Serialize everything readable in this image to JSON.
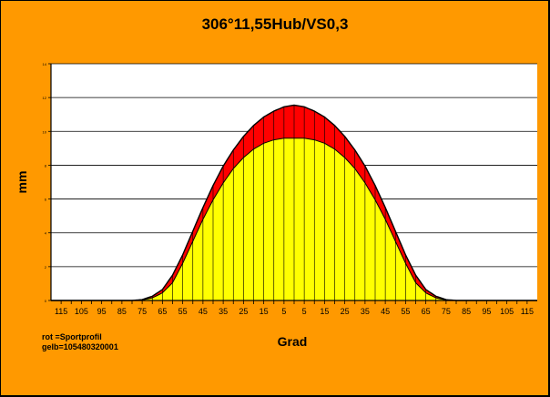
{
  "chart_data": {
    "type": "area",
    "title": "306°11,55Hub/VS0,3",
    "xlabel": "Grad",
    "ylabel": "mm",
    "x_tick_labels": [
      "115",
      "105",
      "95",
      "85",
      "75",
      "65",
      "55",
      "45",
      "35",
      "25",
      "15",
      "5",
      "5",
      "15",
      "25",
      "35",
      "45",
      "55",
      "65",
      "75",
      "85",
      "95",
      "105",
      "115"
    ],
    "x_range": [
      -120,
      120
    ],
    "y_range": [
      0,
      14
    ],
    "y_tick_labels": [
      "0",
      "2",
      "4",
      "6",
      "8",
      "10",
      "12",
      "14"
    ],
    "grid": true,
    "series": [
      {
        "name": "rot =Sportprofil",
        "color": "#ff0000",
        "x": [
          -120,
          -90,
          -80,
          -75,
          -70,
          -65,
          -60,
          -55,
          -50,
          -45,
          -40,
          -35,
          -30,
          -25,
          -20,
          -15,
          -10,
          -5,
          0,
          5,
          10,
          15,
          20,
          25,
          30,
          35,
          40,
          45,
          50,
          55,
          60,
          65,
          70,
          75,
          80,
          90,
          120
        ],
        "values": [
          0,
          0,
          0,
          0.05,
          0.25,
          0.65,
          1.5,
          2.7,
          4.1,
          5.5,
          6.8,
          7.95,
          8.9,
          9.7,
          10.35,
          10.85,
          11.2,
          11.45,
          11.55,
          11.45,
          11.2,
          10.85,
          10.35,
          9.7,
          8.9,
          7.95,
          6.8,
          5.5,
          4.1,
          2.7,
          1.5,
          0.65,
          0.25,
          0.05,
          0,
          0,
          0
        ]
      },
      {
        "name": "gelb=105480320001",
        "color": "#ffff00",
        "x": [
          -120,
          -90,
          -80,
          -75,
          -70,
          -65,
          -60,
          -55,
          -50,
          -45,
          -40,
          -35,
          -30,
          -25,
          -20,
          -15,
          -10,
          -5,
          0,
          5,
          10,
          15,
          20,
          25,
          30,
          35,
          40,
          45,
          50,
          55,
          60,
          65,
          70,
          75,
          80,
          90,
          120
        ],
        "values": [
          0,
          0,
          0,
          0.03,
          0.15,
          0.45,
          1.05,
          2.2,
          3.5,
          4.8,
          5.95,
          6.95,
          7.8,
          8.45,
          8.95,
          9.3,
          9.5,
          9.6,
          9.6,
          9.6,
          9.5,
          9.3,
          8.95,
          8.45,
          7.8,
          6.95,
          5.95,
          4.8,
          3.5,
          2.2,
          1.05,
          0.45,
          0.15,
          0.03,
          0,
          0,
          0
        ]
      }
    ],
    "colors": {
      "background": "#ff9900",
      "plot_area": "#ffffff",
      "grid": "#000000"
    }
  },
  "legend": {
    "line1": "rot =Sportprofil",
    "line2": "gelb=105480320001"
  }
}
